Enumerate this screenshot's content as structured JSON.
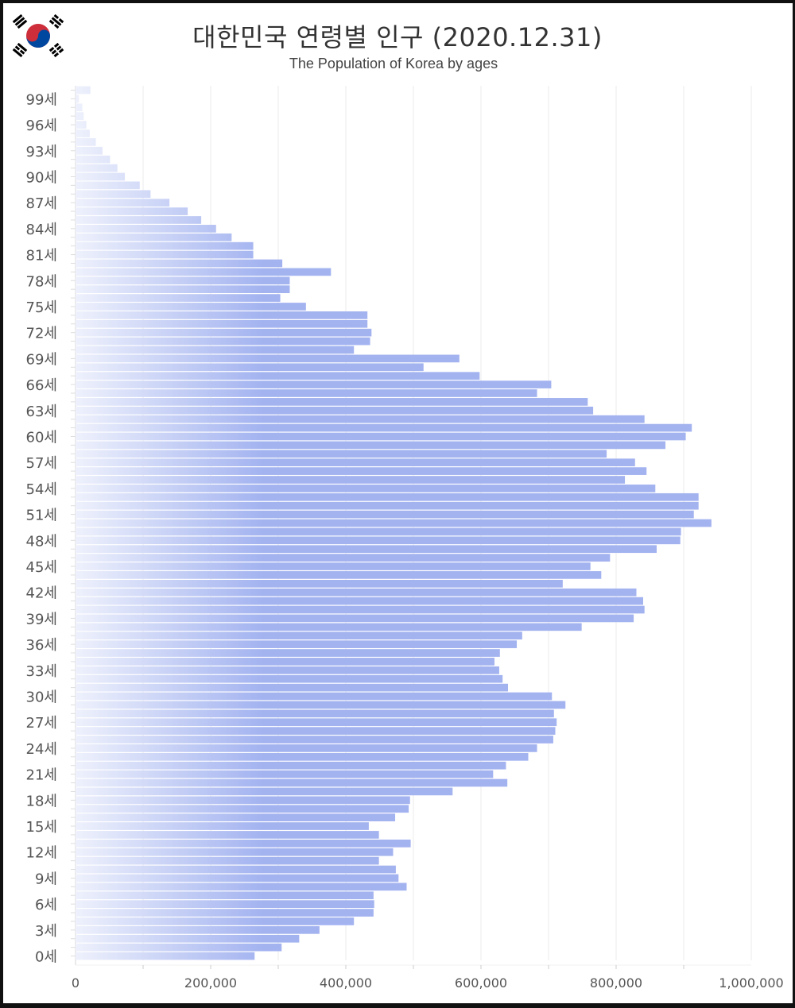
{
  "title": "대한민국 연령별 인구 (2020.12.31)",
  "subtitle": "The Population of Korea by ages",
  "flag": {
    "name": "south-korea-flag",
    "red": "#cd2e3a",
    "blue": "#0047a0",
    "black": "#000000"
  },
  "colors": {
    "bar_full": "#a3b3f0",
    "bar_fade": "#eef1fc",
    "grid": "#ebebeb"
  },
  "chart_data": {
    "type": "bar",
    "orientation": "horizontal",
    "title": "대한민국 연령별 인구 (2020.12.31)",
    "subtitle": "The Population of Korea by ages",
    "xlabel": "",
    "ylabel": "",
    "xlim": [
      0,
      1000000
    ],
    "x_ticks": [
      0,
      200000,
      400000,
      600000,
      800000,
      1000000
    ],
    "x_tick_labels": [
      "0",
      "200,000",
      "400,000",
      "600,000",
      "800,000",
      "1,000,000"
    ],
    "grid": true,
    "legend": "none",
    "categories": [
      "0세",
      "1세",
      "2세",
      "3세",
      "4세",
      "5세",
      "6세",
      "7세",
      "8세",
      "9세",
      "10세",
      "11세",
      "12세",
      "13세",
      "14세",
      "15세",
      "16세",
      "17세",
      "18세",
      "19세",
      "20세",
      "21세",
      "22세",
      "23세",
      "24세",
      "25세",
      "26세",
      "27세",
      "28세",
      "29세",
      "30세",
      "31세",
      "32세",
      "33세",
      "34세",
      "35세",
      "36세",
      "37세",
      "38세",
      "39세",
      "40세",
      "41세",
      "42세",
      "43세",
      "44세",
      "45세",
      "46세",
      "47세",
      "48세",
      "49세",
      "50세",
      "51세",
      "52세",
      "53세",
      "54세",
      "55세",
      "56세",
      "57세",
      "58세",
      "59세",
      "60세",
      "61세",
      "62세",
      "63세",
      "64세",
      "65세",
      "66세",
      "67세",
      "68세",
      "69세",
      "70세",
      "71세",
      "72세",
      "73세",
      "74세",
      "75세",
      "76세",
      "77세",
      "78세",
      "79세",
      "80세",
      "81세",
      "82세",
      "83세",
      "84세",
      "85세",
      "86세",
      "87세",
      "88세",
      "89세",
      "90세",
      "91세",
      "92세",
      "93세",
      "94세",
      "95세",
      "96세",
      "97세",
      "98세",
      "99세",
      "100세"
    ],
    "tick_labels": [
      "0세",
      "3세",
      "6세",
      "9세",
      "12세",
      "15세",
      "18세",
      "21세",
      "24세",
      "27세",
      "30세",
      "33세",
      "36세",
      "39세",
      "42세",
      "45세",
      "48세",
      "51세",
      "54세",
      "57세",
      "60세",
      "63세",
      "66세",
      "69세",
      "72세",
      "75세",
      "78세",
      "81세",
      "84세",
      "87세",
      "90세",
      "93세",
      "96세",
      "99세"
    ],
    "values": [
      265000,
      305000,
      331000,
      361000,
      412000,
      441000,
      442000,
      441000,
      490000,
      478000,
      474000,
      449000,
      470000,
      496000,
      449000,
      434000,
      473000,
      493000,
      495000,
      558000,
      639000,
      618000,
      637000,
      670000,
      683000,
      707000,
      710000,
      712000,
      708000,
      725000,
      705000,
      640000,
      632000,
      627000,
      620000,
      628000,
      653000,
      661000,
      749000,
      826000,
      842000,
      840000,
      830000,
      721000,
      778000,
      762000,
      791000,
      860000,
      895000,
      896000,
      941000,
      915000,
      922000,
      922000,
      858000,
      813000,
      845000,
      828000,
      786000,
      873000,
      903000,
      912000,
      842000,
      766000,
      758000,
      683000,
      704000,
      598000,
      515000,
      568000,
      412000,
      436000,
      438000,
      432000,
      432000,
      341000,
      303000,
      317000,
      317000,
      378000,
      306000,
      263000,
      263000,
      231000,
      208000,
      186000,
      166000,
      139000,
      111000,
      95000,
      73000,
      62000,
      51000,
      40000,
      30000,
      21000,
      16000,
      12000,
      10000,
      5000,
      22000
    ]
  }
}
